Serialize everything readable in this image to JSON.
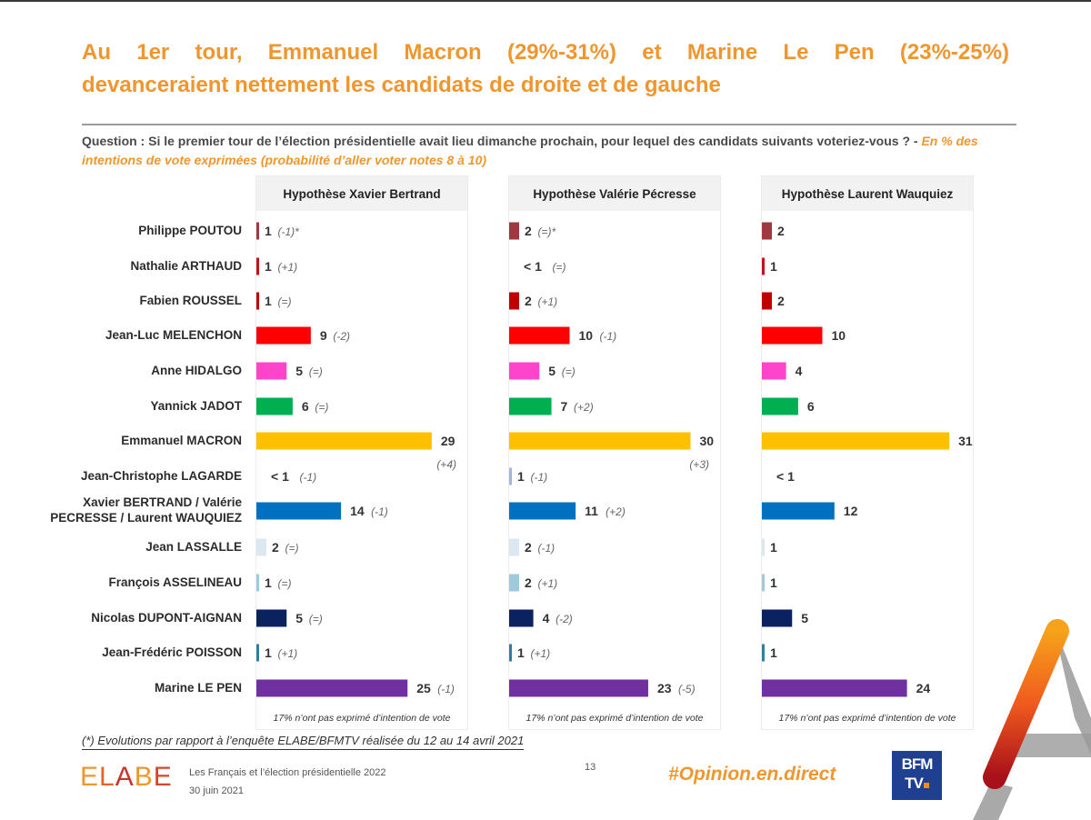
{
  "title": {
    "line1_words": [
      "Au",
      "1er",
      "tour,",
      "Emmanuel",
      "Macron",
      "(29%-31%)",
      "et",
      "Marine",
      "Le",
      "Pen",
      "(23%-25%)"
    ],
    "line2": "devanceraient nettement les candidats de droite et de gauche"
  },
  "question": {
    "text": "Question : Si le premier tour de l’élection présidentielle avait lieu dimanche prochain, pour lequel des candidats suivants voteriez-vous ? - ",
    "subtext": "En % des intentions de vote exprimées (probabilité d’aller voter notes 8 à 10)"
  },
  "candidates": [
    "Philippe POUTOU",
    "Nathalie ARTHAUD",
    "Fabien ROUSSEL",
    "Jean-Luc MELENCHON",
    "Anne HIDALGO",
    "Yannick JADOT",
    "Emmanuel MACRON",
    "Jean-Christophe LAGARDE",
    "Xavier BERTRAND / Valérie PECRESSE / Laurent WAUQUIEZ",
    "Jean LASSALLE",
    "François ASSELINEAU",
    "Nicolas DUPONT-AIGNAN",
    "Jean-Frédéric POISSON",
    "Marine LE PEN"
  ],
  "colors": [
    "#9e3a3f",
    "#c3121c",
    "#c00000",
    "#ff0000",
    "#ff44cc",
    "#00b050",
    "#ffc000",
    "#9fb8db",
    "#0070c0",
    "#dbe8f1",
    "#9fcadd",
    "#0b2260",
    "#2f7f9f",
    "#7030a0"
  ],
  "chart_data": {
    "type": "bar",
    "orientation": "horizontal",
    "title": "Au 1er tour, Emmanuel Macron (29%-31%) et Marine Le Pen (23%-25%) devanceraient nettement les candidats de droite et de gauche",
    "xlabel": "En % des intentions de vote exprimées",
    "ylabel": "",
    "xlim": [
      0,
      32
    ],
    "categories": [
      "Philippe POUTOU",
      "Nathalie ARTHAUD",
      "Fabien ROUSSEL",
      "Jean-Luc MELENCHON",
      "Anne HIDALGO",
      "Yannick JADOT",
      "Emmanuel MACRON",
      "Jean-Christophe LAGARDE",
      "Xavier BERTRAND / Valérie PECRESSE / Laurent WAUQUIEZ",
      "Jean LASSALLE",
      "François ASSELINEAU",
      "Nicolas DUPONT-AIGNAN",
      "Jean-Frédéric POISSON",
      "Marine LE PEN"
    ],
    "series": [
      {
        "name": "Hypothèse Xavier Bertrand",
        "values": [
          1,
          1,
          1,
          9,
          5,
          6,
          29,
          0.3,
          14,
          2,
          1,
          5,
          1,
          25
        ],
        "labels": [
          "1",
          "1",
          "1",
          "9",
          "5",
          "6",
          "29",
          "< 1",
          "14",
          "2",
          "1",
          "5",
          "1",
          "25"
        ],
        "changes": [
          "(-1)*",
          "(+1)",
          "(=)",
          "(-2)",
          "(=)",
          "(=)",
          "(+4)",
          "(-1)",
          "(-1)",
          "(=)",
          "(=)",
          "(=)",
          "(+1)",
          "(-1)"
        ],
        "note": "17% n’ont pas exprimé d’intention de vote"
      },
      {
        "name": "Hypothèse Valérie Pécresse",
        "values": [
          2,
          0.3,
          2,
          10,
          5,
          7,
          30,
          1,
          11,
          2,
          2,
          4,
          1,
          23
        ],
        "labels": [
          "2",
          "< 1",
          "2",
          "10",
          "5",
          "7",
          "30",
          "1",
          "11",
          "2",
          "2",
          "4",
          "1",
          "23"
        ],
        "changes": [
          "(=)*",
          "(=)",
          "(+1)",
          "(-1)",
          "(=)",
          "(+2)",
          "(+3)",
          "(-1)",
          "(+2)",
          "(-1)",
          "(+1)",
          "(-2)",
          "(+1)",
          "(-5)"
        ],
        "note": "17% n’ont pas exprimé d’intention de vote"
      },
      {
        "name": "Hypothèse Laurent Wauquiez",
        "values": [
          2,
          1,
          2,
          10,
          4,
          6,
          31,
          0.3,
          12,
          1,
          1,
          5,
          1,
          24
        ],
        "labels": [
          "2",
          "1",
          "2",
          "10",
          "4",
          "6",
          "31",
          "< 1",
          "12",
          "1",
          "1",
          "5",
          "1",
          "24"
        ],
        "changes": [
          "",
          "",
          "",
          "",
          "",
          "",
          "",
          "",
          "",
          "",
          "",
          "",
          "",
          ""
        ],
        "note": "17% n’ont pas exprimé d’intention de vote"
      }
    ]
  },
  "footnote": "(*) Evolutions par rapport à l’enquête ELABE/BFMTV réalisée du 12 au 14 avril 2021",
  "footer": {
    "logo_letters": [
      "E",
      "L",
      "A",
      "B",
      "E"
    ],
    "logo_colors": [
      "#f0962e",
      "#e8622a",
      "#c7352b",
      "#f0962e",
      "#d8452a"
    ],
    "study": "Les Français et l’élection présidentielle 2022",
    "date": "30 juin 2021",
    "page": "13",
    "hashtag": "#Opinion.en.direct",
    "bfm_line1": "BFM",
    "bfm_line2": "TV"
  }
}
